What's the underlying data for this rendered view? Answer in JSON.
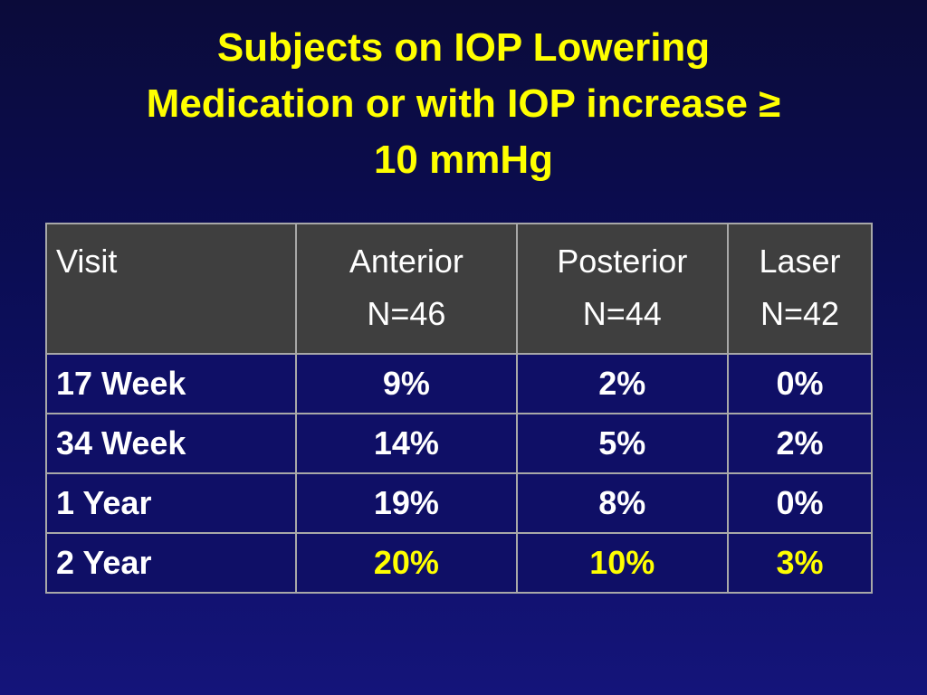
{
  "title": {
    "line1": "Subjects on IOP Lowering",
    "line2": "Medication or with IOP increase ≥",
    "line3": "10 mmHg"
  },
  "table": {
    "headers": {
      "visit": "Visit",
      "anterior": "Anterior",
      "anterior_n": "N=46",
      "posterior": "Posterior",
      "posterior_n": "N=44",
      "laser": "Laser",
      "laser_n": "N=42"
    },
    "rows": [
      {
        "visit": "17 Week",
        "anterior": "9%",
        "posterior": "2%",
        "laser": "0%"
      },
      {
        "visit": "34 Week",
        "anterior": "14%",
        "posterior": "5%",
        "laser": "2%"
      },
      {
        "visit": "1 Year",
        "anterior": "19%",
        "posterior": "8%",
        "laser": "0%"
      },
      {
        "visit": "2 Year",
        "anterior": "20%",
        "posterior": "10%",
        "laser": "3%"
      }
    ]
  },
  "colors": {
    "title": "#ffff00",
    "highlight": "#ffff00",
    "header_bg": "#3f3f3f",
    "body_bg": "#0f0f66",
    "text": "#ffffff"
  }
}
